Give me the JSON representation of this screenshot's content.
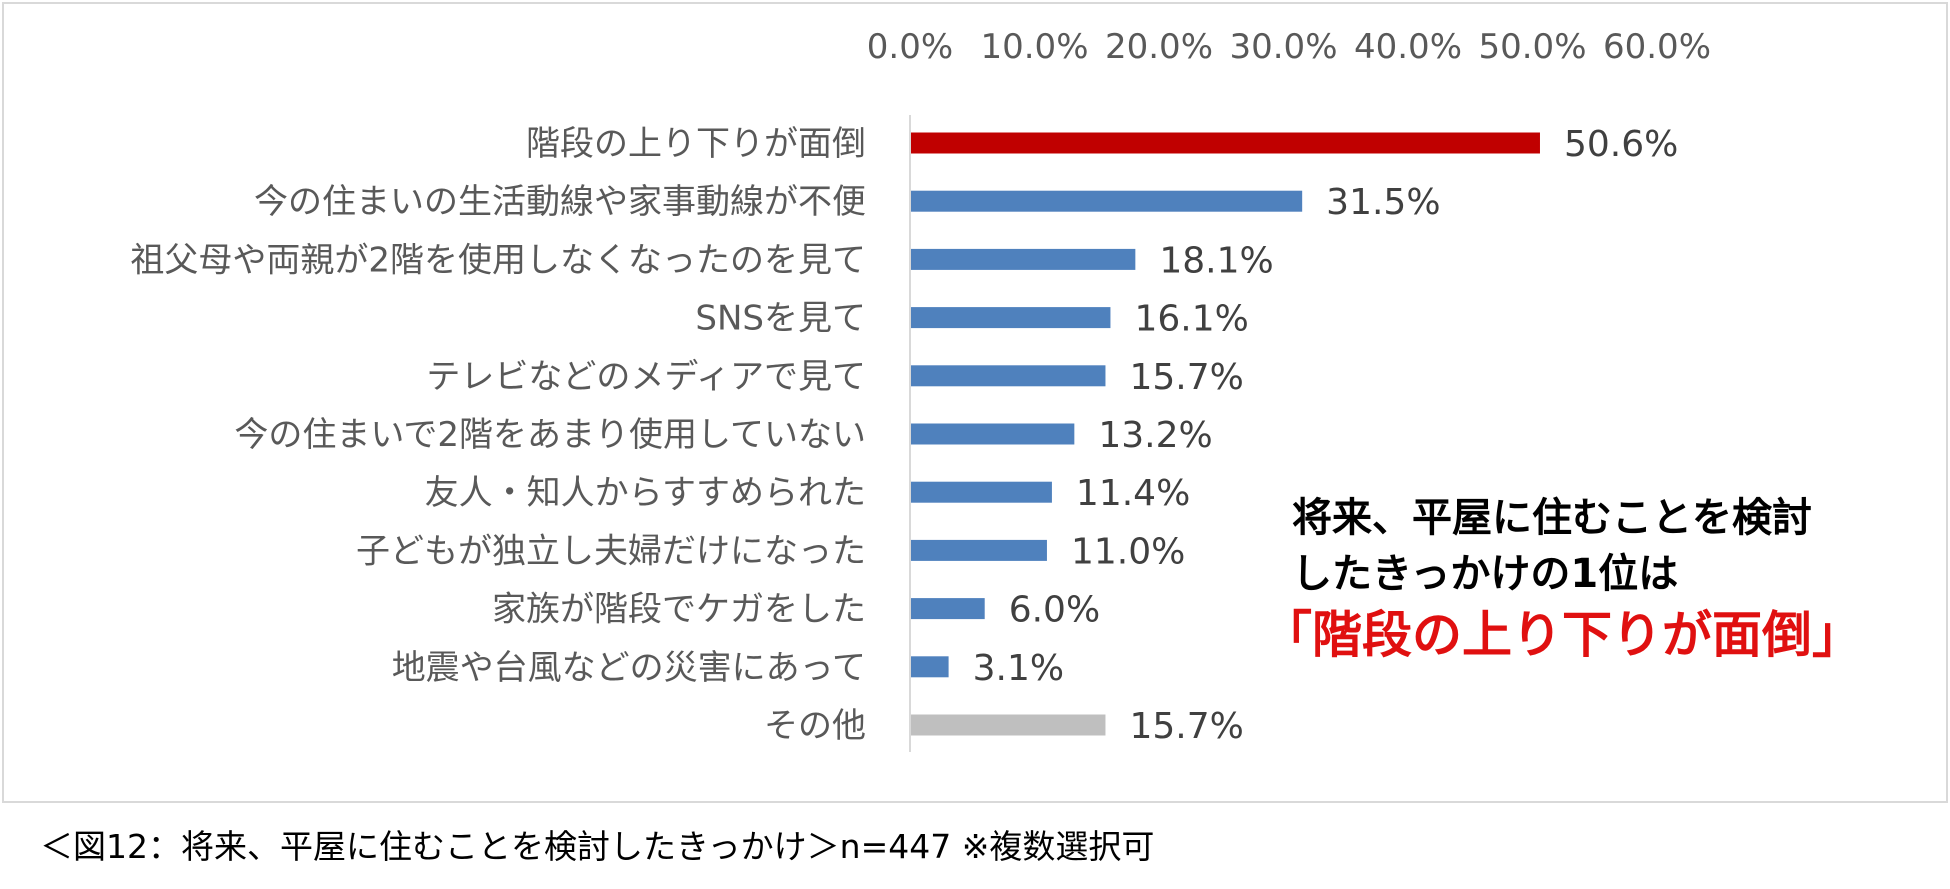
{
  "chart_data": {
    "type": "bar",
    "orientation": "horizontal",
    "title": "",
    "xlabel": "",
    "ylabel": "",
    "xlim": [
      0,
      60
    ],
    "x_ticks": [
      "0.0%",
      "10.0%",
      "20.0%",
      "30.0%",
      "40.0%",
      "50.0%",
      "60.0%"
    ],
    "x_tick_values": [
      0,
      10,
      20,
      30,
      40,
      50,
      60
    ],
    "x_axis_position": "top",
    "grid": false,
    "categories": [
      "階段の上り下りが面倒",
      "今の住まいの生活動線や家事動線が不便",
      "祖父母や両親が2階を使用しなくなったのを見て",
      "SNSを見て",
      "テレビなどのメディアで見て",
      "今の住まいで2階をあまり使用していない",
      "友人・知人からすすめられた",
      "子どもが独立し夫婦だけになった",
      "家族が階段でケガをした",
      "地震や台風などの災害にあって",
      "その他"
    ],
    "values": [
      50.6,
      31.5,
      18.1,
      16.1,
      15.7,
      13.2,
      11.4,
      11.0,
      6.0,
      3.1,
      15.7
    ],
    "value_labels": [
      "50.6%",
      "31.5%",
      "18.1%",
      "16.1%",
      "15.7%",
      "13.2%",
      "11.4%",
      "11.0%",
      "6.0%",
      "3.1%",
      "15.7%"
    ],
    "bar_colors": [
      "#c00000",
      "#4f81bd",
      "#4f81bd",
      "#4f81bd",
      "#4f81bd",
      "#4f81bd",
      "#4f81bd",
      "#4f81bd",
      "#4f81bd",
      "#4f81bd",
      "#bfbfbf"
    ]
  },
  "callout": {
    "line1": "将来、平屋に住むことを検討",
    "line2": "したきっかけの1位は",
    "highlight": "「階段の上り下りが面倒」"
  },
  "caption": "＜図12：将来、平屋に住むことを検討したきっかけ＞n=447 ※複数選択可",
  "colors": {
    "axis_line": "#d9d9d9",
    "highlight_text": "#e01010",
    "frame_border": "#d9d9d9"
  }
}
